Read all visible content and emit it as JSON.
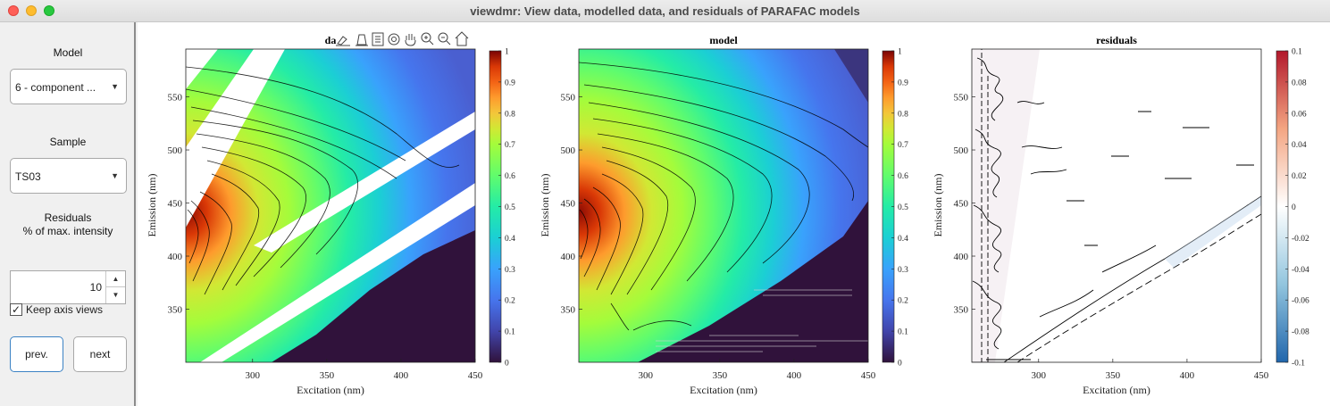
{
  "window": {
    "title": "viewdmr: View data, modelled data, and residuals of PARAFAC models"
  },
  "controls": {
    "model_label": "Model",
    "model_value": "6 - component ...",
    "sample_label": "Sample",
    "sample_value": "TS03",
    "residuals_label_line1": "Residuals",
    "residuals_label_line2": "% of max. intensity",
    "residuals_value": "10",
    "keep_axis_label": "Keep axis views",
    "keep_axis_checked": "✓",
    "prev_label": "prev.",
    "next_label": "next"
  },
  "toolbar": {
    "icons": [
      "brush-icon",
      "edit-icon",
      "legend-icon",
      "rotate-icon",
      "pan-icon",
      "zoom-in-icon",
      "zoom-out-icon",
      "home-icon"
    ]
  },
  "chart_data": [
    {
      "type": "heatmap",
      "title": "da",
      "xlabel": "Excitation (nm)",
      "ylabel": "Emission (nm)",
      "x_ticks": [
        "300",
        "350",
        "400",
        "450"
      ],
      "y_ticks": [
        "350",
        "400",
        "450",
        "500",
        "550"
      ],
      "xlim": [
        255,
        450
      ],
      "ylim": [
        300,
        595
      ],
      "colormap": "turbo",
      "colorbar_ticks": [
        "0",
        "0.1",
        "0.2",
        "0.3",
        "0.4",
        "0.5",
        "0.6",
        "0.7",
        "0.8",
        "0.9",
        "1"
      ],
      "colorbar_range": [
        0,
        1
      ]
    },
    {
      "type": "heatmap",
      "title": "model",
      "xlabel": "Excitation (nm)",
      "ylabel": "Emission (nm)",
      "x_ticks": [
        "300",
        "350",
        "400",
        "450"
      ],
      "y_ticks": [
        "350",
        "400",
        "450",
        "500",
        "550"
      ],
      "xlim": [
        255,
        450
      ],
      "ylim": [
        300,
        595
      ],
      "colormap": "turbo",
      "colorbar_ticks": [
        "0",
        "0.1",
        "0.2",
        "0.3",
        "0.4",
        "0.5",
        "0.6",
        "0.7",
        "0.8",
        "0.9",
        "1"
      ],
      "colorbar_range": [
        0,
        1
      ]
    },
    {
      "type": "heatmap",
      "title": "residuals",
      "xlabel": "Excitation (nm)",
      "ylabel": "Emission (nm)",
      "x_ticks": [
        "300",
        "350",
        "400",
        "450"
      ],
      "y_ticks": [
        "350",
        "400",
        "450",
        "500",
        "550"
      ],
      "xlim": [
        255,
        450
      ],
      "ylim": [
        300,
        595
      ],
      "colormap": "diverging blue-white-red",
      "colorbar_ticks": [
        "-0.1",
        "-0.08",
        "-0.06",
        "-0.04",
        "-0.02",
        "0",
        "0.02",
        "0.04",
        "0.06",
        "0.08",
        "0.1"
      ],
      "colorbar_range": [
        -0.1,
        0.1
      ]
    }
  ]
}
